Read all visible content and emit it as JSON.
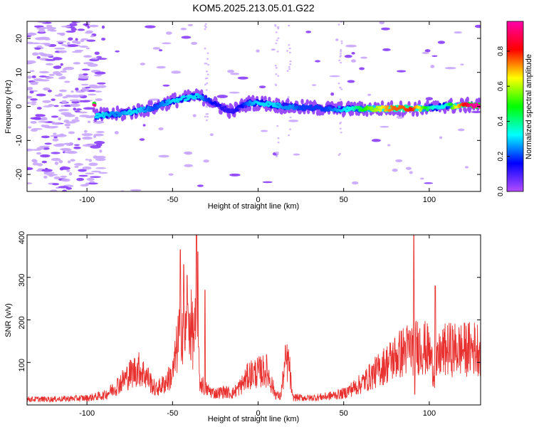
{
  "title": "KOM5.2025.213.05.01.G22",
  "chart_data": [
    {
      "type": "heatmap",
      "xlabel": "Height of straight line (km)",
      "ylabel": "Frequency (Hz)",
      "xlim": [
        -135,
        130
      ],
      "ylim": [
        -25,
        25
      ],
      "xticks": [
        -100,
        -50,
        0,
        50,
        100
      ],
      "yticks": [
        20,
        10,
        0,
        -10,
        -20
      ],
      "colorbar": {
        "label": "Normalized spectral amplitude",
        "range": [
          0,
          0.97
        ],
        "ticks": [
          0.0,
          0.2,
          0.4,
          0.6,
          0.8
        ],
        "colors": [
          "#b44dff",
          "#0000ff",
          "#00ffff",
          "#00ff00",
          "#ffff00",
          "#ff0000",
          "#ff00aa"
        ]
      },
      "ridge": [
        {
          "x": -95,
          "y": -2.8,
          "a": 0.3
        },
        {
          "x": -90,
          "y": -2.6,
          "a": 0.3
        },
        {
          "x": -85,
          "y": -2.4,
          "a": 0.25
        },
        {
          "x": -80,
          "y": -2.2,
          "a": 0.25
        },
        {
          "x": -75,
          "y": -1.8,
          "a": 0.3
        },
        {
          "x": -70,
          "y": -1.2,
          "a": 0.3
        },
        {
          "x": -65,
          "y": -0.8,
          "a": 0.25
        },
        {
          "x": -60,
          "y": -0.2,
          "a": 0.2
        },
        {
          "x": -55,
          "y": 0.8,
          "a": 0.25
        },
        {
          "x": -50,
          "y": 1.6,
          "a": 0.3
        },
        {
          "x": -45,
          "y": 2.2,
          "a": 0.3
        },
        {
          "x": -40,
          "y": 2.6,
          "a": 0.3
        },
        {
          "x": -35,
          "y": 3.0,
          "a": 0.3
        },
        {
          "x": -30,
          "y": 2.2,
          "a": 0.2
        },
        {
          "x": -25,
          "y": 0.6,
          "a": 0.15
        },
        {
          "x": -20,
          "y": -0.6,
          "a": 0.12
        },
        {
          "x": -15,
          "y": -1.5,
          "a": 0.12
        },
        {
          "x": -10,
          "y": 0.0,
          "a": 0.15
        },
        {
          "x": -5,
          "y": 1.0,
          "a": 0.25
        },
        {
          "x": 0,
          "y": 1.0,
          "a": 0.3
        },
        {
          "x": 5,
          "y": 0.8,
          "a": 0.3
        },
        {
          "x": 10,
          "y": 0.4,
          "a": 0.3
        },
        {
          "x": 15,
          "y": 0.0,
          "a": 0.25
        },
        {
          "x": 20,
          "y": -0.2,
          "a": 0.25
        },
        {
          "x": 25,
          "y": -0.3,
          "a": 0.2
        },
        {
          "x": 30,
          "y": -0.4,
          "a": 0.2
        },
        {
          "x": 35,
          "y": -0.5,
          "a": 0.2
        },
        {
          "x": 40,
          "y": -0.6,
          "a": 0.2
        },
        {
          "x": 45,
          "y": -0.7,
          "a": 0.25
        },
        {
          "x": 50,
          "y": -0.8,
          "a": 0.3
        },
        {
          "x": 55,
          "y": -0.8,
          "a": 0.35
        },
        {
          "x": 60,
          "y": -0.8,
          "a": 0.45
        },
        {
          "x": 65,
          "y": -0.7,
          "a": 0.55
        },
        {
          "x": 70,
          "y": -0.7,
          "a": 0.6
        },
        {
          "x": 75,
          "y": -0.6,
          "a": 0.7
        },
        {
          "x": 80,
          "y": -0.6,
          "a": 0.75
        },
        {
          "x": 85,
          "y": -0.6,
          "a": 0.75
        },
        {
          "x": 90,
          "y": -0.6,
          "a": 0.8
        },
        {
          "x": 95,
          "y": -0.6,
          "a": 0.6
        },
        {
          "x": 100,
          "y": -0.5,
          "a": 0.4
        },
        {
          "x": 105,
          "y": -0.3,
          "a": 0.3
        },
        {
          "x": 110,
          "y": 0.3,
          "a": 0.35
        },
        {
          "x": 115,
          "y": 0.0,
          "a": 0.6
        },
        {
          "x": 120,
          "y": 0.2,
          "a": 0.8
        },
        {
          "x": 125,
          "y": 0.4,
          "a": 0.95
        },
        {
          "x": 130,
          "y": 0.4,
          "a": 0.95
        }
      ]
    },
    {
      "type": "line",
      "xlabel": "Height of straight line (km)",
      "ylabel": "SNR (v/v)",
      "xlim": [
        -135,
        130
      ],
      "ylim": [
        0,
        400
      ],
      "xticks": [
        -100,
        -50,
        0,
        50,
        100
      ],
      "yticks": [
        100,
        200,
        300,
        400
      ],
      "line_color": "#e8312f",
      "envelope": [
        {
          "x": -135,
          "y": 15
        },
        {
          "x": -120,
          "y": 15
        },
        {
          "x": -100,
          "y": 18
        },
        {
          "x": -90,
          "y": 25
        },
        {
          "x": -85,
          "y": 40
        },
        {
          "x": -80,
          "y": 60
        },
        {
          "x": -75,
          "y": 80
        },
        {
          "x": -70,
          "y": 95
        },
        {
          "x": -65,
          "y": 75
        },
        {
          "x": -60,
          "y": 40
        },
        {
          "x": -55,
          "y": 55
        },
        {
          "x": -50,
          "y": 80
        },
        {
          "x": -48,
          "y": 130
        },
        {
          "x": -45,
          "y": 220
        },
        {
          "x": -42,
          "y": 180
        },
        {
          "x": -40,
          "y": 220
        },
        {
          "x": -38,
          "y": 180
        },
        {
          "x": -36,
          "y": 200
        },
        {
          "x": -34,
          "y": 60
        },
        {
          "x": -30,
          "y": 40
        },
        {
          "x": -25,
          "y": 30
        },
        {
          "x": -20,
          "y": 35
        },
        {
          "x": -15,
          "y": 30
        },
        {
          "x": -10,
          "y": 50
        },
        {
          "x": -5,
          "y": 80
        },
        {
          "x": 0,
          "y": 85
        },
        {
          "x": 5,
          "y": 90
        },
        {
          "x": 10,
          "y": 30
        },
        {
          "x": 13,
          "y": 20
        },
        {
          "x": 16,
          "y": 110
        },
        {
          "x": 18,
          "y": 110
        },
        {
          "x": 20,
          "y": 20
        },
        {
          "x": 30,
          "y": 18
        },
        {
          "x": 40,
          "y": 22
        },
        {
          "x": 50,
          "y": 30
        },
        {
          "x": 60,
          "y": 55
        },
        {
          "x": 70,
          "y": 90
        },
        {
          "x": 80,
          "y": 125
        },
        {
          "x": 85,
          "y": 140
        },
        {
          "x": 90,
          "y": 150
        },
        {
          "x": 95,
          "y": 155
        },
        {
          "x": 100,
          "y": 140
        },
        {
          "x": 103,
          "y": 80
        },
        {
          "x": 106,
          "y": 130
        },
        {
          "x": 110,
          "y": 145
        },
        {
          "x": 120,
          "y": 145
        },
        {
          "x": 130,
          "y": 150
        }
      ],
      "spikes": [
        {
          "x": -45.5,
          "y": 365
        },
        {
          "x": -43.5,
          "y": 330
        },
        {
          "x": -41.5,
          "y": 305
        },
        {
          "x": -36,
          "y": 405
        },
        {
          "x": -35.2,
          "y": 360
        },
        {
          "x": -31,
          "y": 270
        },
        {
          "x": 91,
          "y": 400
        },
        {
          "x": 91.5,
          "y": 25
        },
        {
          "x": 103.5,
          "y": 280
        },
        {
          "x": 104.2,
          "y": 70
        }
      ]
    }
  ]
}
